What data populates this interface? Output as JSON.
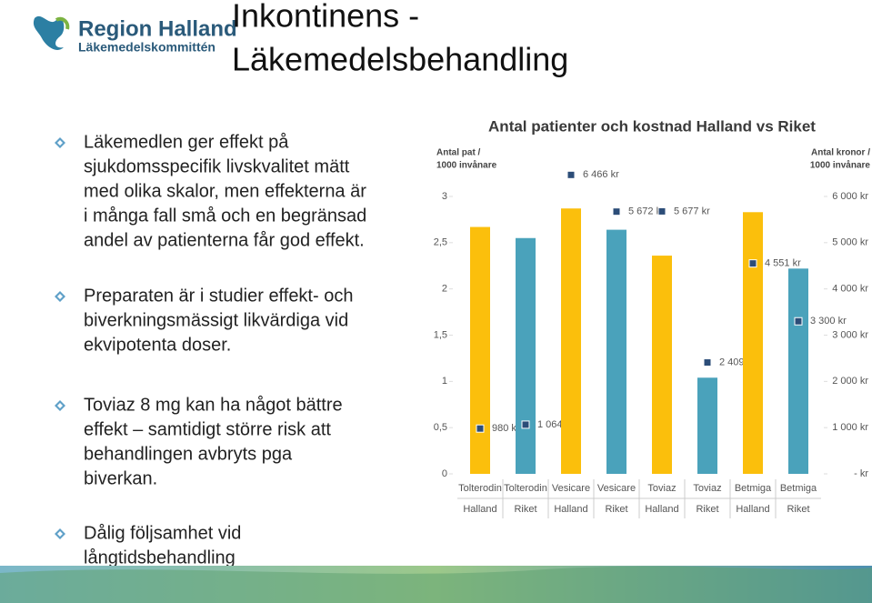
{
  "header": {
    "logo_name": "Region Halland",
    "logo_sub": "Läkemedelskommittén",
    "title": [
      "Inkontinens -",
      "Läkemedelsbehandling"
    ]
  },
  "bullets": [
    [
      "Läkemedlen ger effekt på",
      "sjukdomsspecifik livskvalitet mätt",
      "med olika skalor, men effekterna är",
      "i många fall små och en begränsad",
      "andel av patienterna får god effekt."
    ],
    [
      "Preparaten är i studier effekt- och",
      "biverkningsmässigt likvärdiga vid",
      "ekvipotenta doser."
    ],
    [
      "Toviaz 8 mg kan ha något bättre",
      "effekt – samtidigt större risk att",
      "behandlingen avbryts pga",
      "biverkan."
    ],
    [
      "Dålig följsamhet vid",
      "långtidsbehandling"
    ]
  ],
  "chart_data": {
    "type": "bar",
    "title": "Antal patienter och kostnad Halland vs Riket",
    "ylabel": [
      "Antal pat /",
      "1000 invånare"
    ],
    "y2label": [
      "Antal kronor /",
      "1000 invånare"
    ],
    "categories": [
      [
        "Tolterodin",
        "Halland"
      ],
      [
        "Tolterodin",
        "Riket"
      ],
      [
        "Vesicare",
        "Halland"
      ],
      [
        "Vesicare",
        "Riket"
      ],
      [
        "Toviaz",
        "Halland"
      ],
      [
        "Toviaz",
        "Riket"
      ],
      [
        "Betmiga",
        "Halland"
      ],
      [
        "Betmiga",
        "Riket"
      ]
    ],
    "series": [
      {
        "values": [
          2.67,
          2.55,
          2.87,
          2.64,
          2.36,
          1.04,
          2.83,
          2.22
        ],
        "colors": [
          "#fbbf0c",
          "#4aa2bb",
          "#fbbf0c",
          "#4aa2bb",
          "#fbbf0c",
          "#4aa2bb",
          "#fbbf0c",
          "#4aa2bb"
        ]
      },
      {
        "axis": "y2",
        "color": "#2c4d78",
        "values": [
          980,
          1064,
          6466,
          5672,
          5677,
          2409,
          4551,
          3300
        ],
        "value_labels": [
          "980 kr",
          "1 064 kr",
          "6 466 kr",
          "5 672 kr",
          "5 677 kr",
          "2 409 kr",
          "4 551 kr",
          "3 300 kr"
        ]
      }
    ],
    "ylim": [
      0,
      3
    ],
    "yticks": [
      0,
      {
        "value": 0.5,
        "label": "0,5"
      },
      1,
      {
        "value": 1.5,
        "label": "1,5"
      },
      2,
      {
        "value": 2.5,
        "label": "2,5"
      },
      3
    ],
    "y2lim": [
      0,
      6000
    ],
    "y2ticks": [
      {
        "value": 0,
        "label": "- kr"
      },
      {
        "value": 1000,
        "label": "1 000 kr"
      },
      {
        "value": 2000,
        "label": "2 000 kr"
      },
      {
        "value": 3000,
        "label": "3 000 kr"
      },
      {
        "value": 4000,
        "label": "4 000 kr"
      },
      {
        "value": 5000,
        "label": "5 000 kr"
      },
      {
        "value": 6000,
        "label": "6 000 kr"
      }
    ]
  }
}
